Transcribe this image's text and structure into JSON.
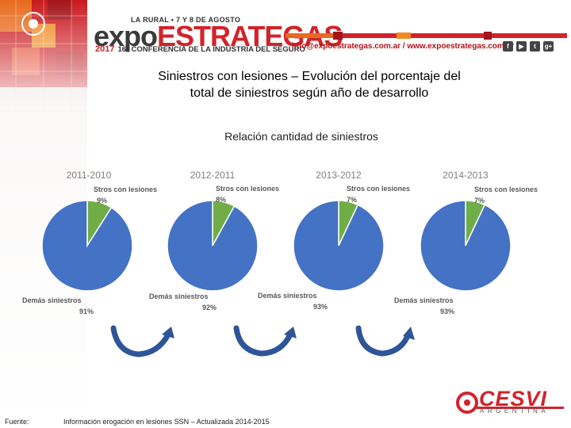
{
  "header": {
    "event_line": "LA RURAL • 7 Y 8 DE AGOSTO",
    "brand_part1": "expo",
    "brand_part2": "ESTRATEGAS",
    "year": "2017",
    "conference": "16° CONFERENCIA DE LA INDUSTRIA DEL SEGURO",
    "contact": "info@expoestrategas.com.ar / www.expoestrategas.com.ar",
    "social": [
      "f",
      "▶",
      "t",
      "g+"
    ]
  },
  "slide": {
    "title_line1": "Siniestros con lesiones – Evolución del porcentaje del",
    "title_line2": "total de siniestros según año de desarrollo",
    "subtitle": "Relación cantidad de siniestros"
  },
  "colors": {
    "lesiones": "#70ad47",
    "demas": "#4472c4",
    "arrow": "#2e5597",
    "accent": "#d2232a"
  },
  "chart_data": {
    "type": "pie",
    "charts": [
      {
        "title": "2011-2010",
        "slices": [
          {
            "label": "Stros con lesiones",
            "value": 9,
            "display": "9%"
          },
          {
            "label": "Demás siniestros",
            "value": 91,
            "display": "91%"
          }
        ]
      },
      {
        "title": "2012-2011",
        "slices": [
          {
            "label": "Stros con lesiones",
            "value": 8,
            "display": "8%"
          },
          {
            "label": "Demás siniestros",
            "value": 92,
            "display": "92%"
          }
        ]
      },
      {
        "title": "2013-2012",
        "slices": [
          {
            "label": "Stros con lesiones",
            "value": 7,
            "display": "7%"
          },
          {
            "label": "Demás siniestros",
            "value": 93,
            "display": "93%"
          }
        ]
      },
      {
        "title": "2014-2013",
        "slices": [
          {
            "label": "Stros con lesiones",
            "value": 7,
            "display": "7%"
          },
          {
            "label": "Demás siniestros",
            "value": 93,
            "display": "93%"
          }
        ]
      }
    ]
  },
  "footer": {
    "label": "Fuente:",
    "text": "Información erogación en lesiones SSN – Actualizada 2014-2015"
  },
  "logo": {
    "name": "CESVI",
    "subtitle": "ARGENTINA"
  }
}
